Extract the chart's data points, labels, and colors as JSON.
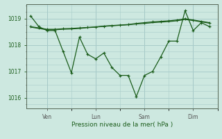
{
  "background_color": "#cde8e0",
  "plot_bg_color": "#cde8e0",
  "line_color": "#1a5c1a",
  "grid_color": "#a8ccca",
  "xlabel": "Pression niveau de la mer( hPa )",
  "yticks": [
    1016,
    1017,
    1018,
    1019
  ],
  "day_labels": [
    "Ven",
    "Lun",
    "Sam",
    "Dim"
  ],
  "day_positions": [
    2,
    8,
    14,
    20
  ],
  "series_jagged_x": [
    0,
    1,
    2,
    3,
    4,
    5,
    6,
    7,
    8,
    9,
    10,
    11,
    12,
    13,
    14,
    15,
    16,
    17,
    18,
    19,
    20,
    21,
    22
  ],
  "series_jagged_y": [
    1019.1,
    1018.7,
    1018.55,
    1018.55,
    1017.75,
    1016.95,
    1018.3,
    1017.65,
    1017.48,
    1017.7,
    1017.15,
    1016.85,
    1016.85,
    1016.05,
    1016.85,
    1017.0,
    1017.55,
    1018.15,
    1018.15,
    1019.3,
    1018.55,
    1018.85,
    1018.7
  ],
  "series_trend1_x": [
    0,
    1,
    2,
    3,
    4,
    5,
    6,
    7,
    8,
    9,
    10,
    11,
    12,
    13,
    14,
    15,
    16,
    17,
    18,
    19,
    20,
    21,
    22
  ],
  "series_trend1_y": [
    1018.7,
    1018.65,
    1018.6,
    1018.6,
    1018.62,
    1018.63,
    1018.65,
    1018.67,
    1018.69,
    1018.72,
    1018.74,
    1018.76,
    1018.78,
    1018.82,
    1018.85,
    1018.88,
    1018.9,
    1018.92,
    1018.95,
    1019.0,
    1018.95,
    1018.9,
    1018.85
  ],
  "series_trend2_x": [
    0,
    1,
    2,
    3,
    4,
    5,
    6,
    7,
    8,
    9,
    10,
    11,
    12,
    13,
    14,
    15,
    16,
    17,
    18,
    19,
    20,
    21,
    22
  ],
  "series_trend2_y": [
    1018.68,
    1018.63,
    1018.58,
    1018.58,
    1018.6,
    1018.61,
    1018.63,
    1018.66,
    1018.68,
    1018.71,
    1018.73,
    1018.75,
    1018.77,
    1018.8,
    1018.82,
    1018.85,
    1018.87,
    1018.89,
    1018.92,
    1018.97,
    1018.93,
    1018.88,
    1018.83
  ],
  "xlim": [
    -0.5,
    23.0
  ],
  "ylim": [
    1015.6,
    1019.55
  ]
}
